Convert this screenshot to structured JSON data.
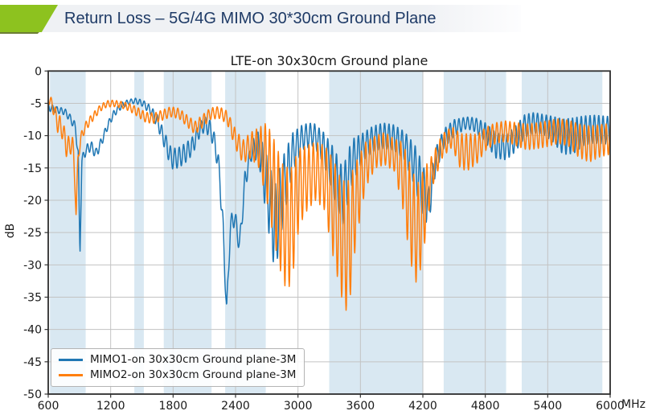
{
  "header": {
    "title": "Return Loss – 5G/4G MIMO 30*30cm Ground Plane",
    "accent_color": "#8dc21f",
    "title_color": "#1e3a66"
  },
  "chart_data": {
    "type": "line",
    "title": "LTE-on 30x30cm Ground plane",
    "ylabel": "dB",
    "x_unit_label": "MHz",
    "xlim": [
      600,
      6000
    ],
    "ylim": [
      -50,
      0
    ],
    "xticks": [
      600,
      1200,
      1800,
      2400,
      3000,
      3600,
      4200,
      4800,
      5400,
      6000
    ],
    "yticks": [
      0,
      -5,
      -10,
      -15,
      -20,
      -25,
      -30,
      -35,
      -40,
      -45,
      -50
    ],
    "grid": true,
    "grid_color": "#c3c3c3",
    "band_color": "#d9e8f2",
    "highlight_bands_mhz": [
      [
        617,
        960
      ],
      [
        1427,
        1518
      ],
      [
        1710,
        2170
      ],
      [
        2300,
        2690
      ],
      [
        3300,
        4200
      ],
      [
        4400,
        5000
      ],
      [
        5150,
        5925
      ]
    ],
    "legend_position": "lower-left",
    "ripple_period_mhz": 42,
    "points_format": [
      "freq_mhz",
      "center_db",
      "ripple_amplitude_db"
    ],
    "series": [
      {
        "name": "MIMO1-on 30x30cm Ground plane-3M",
        "color": "#1f77b4",
        "ripple_phase": 0.0,
        "points": [
          [
            600,
            -5.6,
            0.6
          ],
          [
            680,
            -6.0,
            0.5
          ],
          [
            760,
            -6.3,
            0.5
          ],
          [
            820,
            -7.5,
            0.6
          ],
          [
            862,
            -8.8,
            0.8
          ],
          [
            888,
            -13.0,
            0.8
          ],
          [
            905,
            -28.5,
            0.5
          ],
          [
            922,
            -14.0,
            0.8
          ],
          [
            960,
            -12.3,
            0.8
          ],
          [
            1010,
            -11.6,
            0.8
          ],
          [
            1060,
            -12.8,
            0.8
          ],
          [
            1110,
            -11.0,
            0.7
          ],
          [
            1170,
            -8.5,
            0.6
          ],
          [
            1230,
            -6.6,
            0.5
          ],
          [
            1300,
            -5.4,
            0.5
          ],
          [
            1370,
            -4.8,
            0.4
          ],
          [
            1440,
            -4.6,
            0.4
          ],
          [
            1510,
            -5.0,
            0.5
          ],
          [
            1580,
            -6.0,
            0.7
          ],
          [
            1650,
            -7.8,
            1.0
          ],
          [
            1720,
            -10.8,
            1.3
          ],
          [
            1785,
            -13.6,
            1.6
          ],
          [
            1855,
            -13.4,
            1.6
          ],
          [
            1925,
            -12.6,
            1.5
          ],
          [
            1990,
            -11.5,
            1.4
          ],
          [
            2040,
            -9.5,
            1.2
          ],
          [
            2100,
            -8.2,
            1.2
          ],
          [
            2160,
            -9.0,
            1.3
          ],
          [
            2210,
            -11.8,
            1.5
          ],
          [
            2250,
            -16.5,
            2.0
          ],
          [
            2288,
            -27.0,
            2.0
          ],
          [
            2315,
            -37.5,
            1.5
          ],
          [
            2350,
            -24.0,
            1.5
          ],
          [
            2390,
            -22.5,
            1.5
          ],
          [
            2440,
            -27.0,
            1.5
          ],
          [
            2490,
            -17.0,
            1.5
          ],
          [
            2550,
            -12.5,
            1.5
          ],
          [
            2620,
            -11.5,
            2.2
          ],
          [
            2700,
            -18.0,
            5.0
          ],
          [
            2780,
            -24.5,
            7.0
          ],
          [
            2860,
            -18.0,
            5.0
          ],
          [
            2950,
            -12.5,
            3.0
          ],
          [
            3050,
            -10.2,
            2.0
          ],
          [
            3150,
            -9.8,
            1.8
          ],
          [
            3250,
            -12.0,
            2.5
          ],
          [
            3350,
            -16.0,
            4.0
          ],
          [
            3430,
            -19.5,
            4.5
          ],
          [
            3520,
            -14.0,
            3.5
          ],
          [
            3620,
            -11.8,
            2.2
          ],
          [
            3720,
            -10.5,
            2.0
          ],
          [
            3820,
            -10.0,
            2.0
          ],
          [
            3920,
            -10.3,
            2.0
          ],
          [
            4020,
            -11.5,
            2.2
          ],
          [
            4120,
            -14.5,
            3.2
          ],
          [
            4200,
            -18.5,
            4.2
          ],
          [
            4255,
            -21.0,
            3.0
          ],
          [
            4320,
            -14.0,
            2.0
          ],
          [
            4400,
            -10.5,
            1.5
          ],
          [
            4500,
            -8.8,
            1.3
          ],
          [
            4620,
            -8.0,
            0.9
          ],
          [
            4700,
            -8.3,
            1.1
          ],
          [
            4800,
            -9.5,
            1.5
          ],
          [
            4900,
            -11.5,
            2.0
          ],
          [
            5000,
            -11.8,
            2.0
          ],
          [
            5090,
            -10.5,
            2.0
          ],
          [
            5180,
            -8.5,
            1.8
          ],
          [
            5270,
            -8.0,
            1.6
          ],
          [
            5360,
            -8.3,
            1.6
          ],
          [
            5450,
            -9.0,
            2.0
          ],
          [
            5550,
            -10.2,
            2.8
          ],
          [
            5650,
            -10.0,
            2.8
          ],
          [
            5750,
            -9.2,
            2.3
          ],
          [
            5850,
            -9.0,
            2.2
          ],
          [
            6000,
            -9.2,
            2.2
          ]
        ]
      },
      {
        "name": "MIMO2-on 30x30cm Ground plane-3M",
        "color": "#ff7f0e",
        "ripple_phase": 2.0,
        "points": [
          [
            600,
            -4.3,
            0.7
          ],
          [
            640,
            -5.2,
            0.9
          ],
          [
            690,
            -8.0,
            1.5
          ],
          [
            730,
            -8.8,
            1.5
          ],
          [
            775,
            -11.5,
            1.8
          ],
          [
            805,
            -11.8,
            1.5
          ],
          [
            832,
            -11.0,
            1.2
          ],
          [
            856,
            -16.0,
            2.0
          ],
          [
            868,
            -22.5,
            1.0
          ],
          [
            886,
            -13.5,
            1.0
          ],
          [
            912,
            -10.5,
            0.8
          ],
          [
            945,
            -9.0,
            0.8
          ],
          [
            985,
            -8.0,
            0.7
          ],
          [
            1035,
            -7.0,
            0.6
          ],
          [
            1095,
            -5.8,
            0.5
          ],
          [
            1160,
            -5.1,
            0.5
          ],
          [
            1225,
            -5.0,
            0.5
          ],
          [
            1300,
            -5.2,
            0.5
          ],
          [
            1380,
            -5.6,
            0.6
          ],
          [
            1455,
            -6.3,
            0.7
          ],
          [
            1540,
            -7.2,
            0.8
          ],
          [
            1620,
            -7.3,
            0.8
          ],
          [
            1700,
            -6.8,
            0.8
          ],
          [
            1780,
            -6.3,
            0.8
          ],
          [
            1860,
            -6.6,
            0.8
          ],
          [
            1940,
            -7.8,
            0.9
          ],
          [
            2010,
            -8.8,
            1.0
          ],
          [
            2080,
            -7.8,
            1.0
          ],
          [
            2160,
            -6.6,
            0.9
          ],
          [
            2240,
            -6.4,
            0.9
          ],
          [
            2320,
            -7.2,
            1.0
          ],
          [
            2400,
            -10.5,
            1.5
          ],
          [
            2470,
            -12.5,
            1.8
          ],
          [
            2545,
            -11.5,
            2.0
          ],
          [
            2620,
            -11.8,
            3.0
          ],
          [
            2700,
            -14.0,
            6.0
          ],
          [
            2780,
            -19.0,
            8.0
          ],
          [
            2862,
            -24.0,
            9.2
          ],
          [
            2935,
            -24.2,
            9.2
          ],
          [
            3010,
            -18.0,
            6.0
          ],
          [
            3090,
            -16.5,
            5.0
          ],
          [
            3170,
            -15.5,
            4.5
          ],
          [
            3255,
            -16.5,
            5.0
          ],
          [
            3335,
            -21.0,
            7.5
          ],
          [
            3420,
            -26.0,
            9.0
          ],
          [
            3482,
            -27.5,
            10.5
          ],
          [
            3560,
            -20.0,
            6.0
          ],
          [
            3650,
            -14.5,
            3.5
          ],
          [
            3745,
            -12.5,
            2.5
          ],
          [
            3835,
            -12.0,
            2.5
          ],
          [
            3925,
            -13.0,
            2.5
          ],
          [
            4005,
            -16.0,
            5.0
          ],
          [
            4080,
            -22.0,
            7.5
          ],
          [
            4148,
            -25.5,
            8.0
          ],
          [
            4215,
            -21.0,
            6.0
          ],
          [
            4290,
            -15.5,
            2.5
          ],
          [
            4390,
            -11.5,
            1.8
          ],
          [
            4480,
            -10.2,
            1.6
          ],
          [
            4565,
            -12.5,
            2.8
          ],
          [
            4645,
            -12.5,
            2.8
          ],
          [
            4725,
            -12.0,
            2.2
          ],
          [
            4805,
            -10.5,
            1.8
          ],
          [
            4900,
            -9.6,
            1.6
          ],
          [
            5000,
            -9.3,
            1.6
          ],
          [
            5100,
            -9.8,
            1.8
          ],
          [
            5200,
            -10.2,
            2.0
          ],
          [
            5300,
            -10.0,
            2.0
          ],
          [
            5400,
            -9.7,
            2.0
          ],
          [
            5500,
            -9.3,
            1.9
          ],
          [
            5600,
            -9.6,
            2.0
          ],
          [
            5700,
            -10.8,
            2.6
          ],
          [
            5800,
            -11.3,
            2.8
          ],
          [
            5900,
            -10.8,
            2.5
          ],
          [
            6000,
            -10.5,
            2.4
          ]
        ]
      }
    ]
  }
}
